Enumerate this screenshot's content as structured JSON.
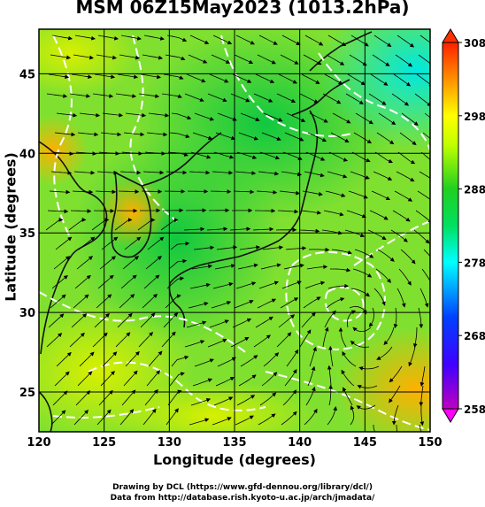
{
  "title": "MSM 06Z15May2023 (1013.2hPa)",
  "xlabel": "Longitude (degrees)",
  "ylabel": "Latitude  (degrees)",
  "credits": [
    "Drawing by DCL (https://www.gfd-dennou.org/library/dcl/)",
    "Data from http://database.rish.kyoto-u.ac.jp/arch/jmadata/"
  ],
  "chart_data": {
    "type": "map",
    "x": {
      "range": [
        120,
        150
      ],
      "ticks": [
        "120",
        "125",
        "130",
        "135",
        "140",
        "145",
        "150"
      ],
      "grid": true
    },
    "y": {
      "range": [
        22.5,
        47.8
      ],
      "ticks": [
        "25",
        "30",
        "35",
        "40",
        "45"
      ],
      "grid": true
    },
    "colorbar": {
      "range": [
        258,
        308
      ],
      "ticks": [
        "258",
        "268",
        "278",
        "288",
        "298",
        "308"
      ],
      "colors": [
        "#ff00ff",
        "#0000ff",
        "#00ffff",
        "#00ff00",
        "#ffff00",
        "#ff0000"
      ]
    },
    "colors": {
      "land": "#111111",
      "contour": "#ffffff",
      "streamline": "#000000",
      "grid": "#000000"
    }
  }
}
